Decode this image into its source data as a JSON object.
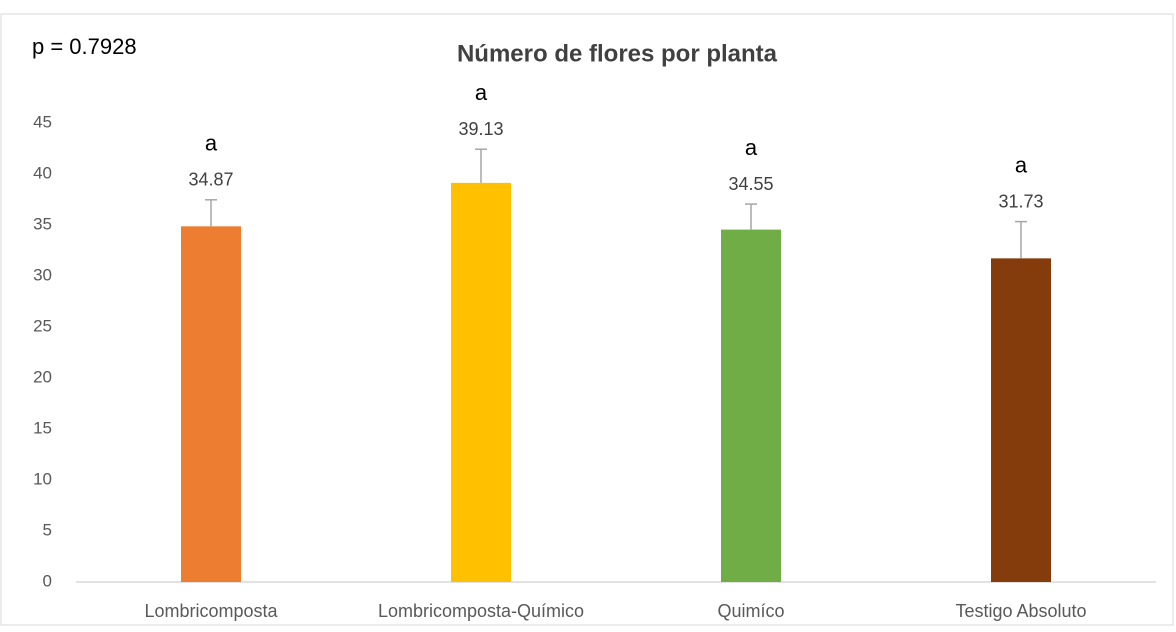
{
  "chart_data": {
    "type": "bar",
    "title": "Número de flores por planta",
    "annotation": "p = 0.7928",
    "categories": [
      "Lombricomposta",
      "Lombricomposta-Químico",
      "Quimíco",
      "Testigo Absoluto"
    ],
    "values": [
      34.87,
      39.13,
      34.55,
      31.73
    ],
    "errors": [
      2.6,
      3.3,
      2.5,
      3.6
    ],
    "significance": [
      "a",
      "a",
      "a",
      "a"
    ],
    "colors": [
      "#ed7d31",
      "#ffc000",
      "#70ad47",
      "#843c0c"
    ],
    "ylim": [
      0,
      45
    ],
    "yticks": [
      0,
      5,
      10,
      15,
      20,
      25,
      30,
      35,
      40,
      45
    ],
    "grid": false
  }
}
